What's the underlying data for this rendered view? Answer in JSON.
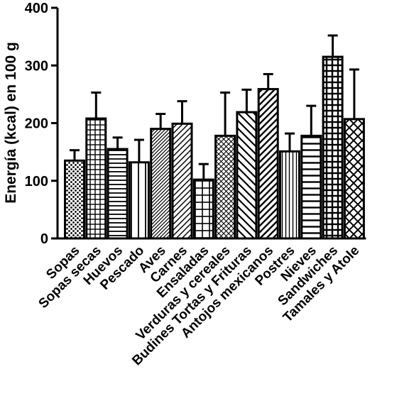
{
  "chart_data": {
    "type": "bar",
    "ylabel": "Energía (kcal) en 100 g",
    "xlabel": "",
    "ylim": [
      0,
      400
    ],
    "yticks": [
      0,
      100,
      200,
      300,
      400
    ],
    "error_bars": "upper",
    "categories": [
      "Sopas",
      "Sopas secas",
      "Huevos",
      "Pescado",
      "Aves",
      "Carnes",
      "Ensaladas",
      "Verduras y cereales",
      "Budines Tortas y Frituras",
      "Antojos mexicanos",
      "Postres",
      "Nieves",
      "Sandwiches",
      "Tamales y Atole"
    ],
    "values": [
      135,
      208,
      155,
      132,
      190,
      199,
      102,
      178,
      219,
      259,
      151,
      178,
      315,
      207
    ],
    "errors": [
      18,
      45,
      20,
      39,
      26,
      39,
      27,
      75,
      39,
      26,
      31,
      52,
      37,
      86
    ],
    "patterns": [
      "dots",
      "grid-small",
      "horizontal",
      "vertical",
      "diagonal-right-dense",
      "diagonal-right",
      "grid",
      "crosshatch-diagonal",
      "diagonal-left",
      "diagonal-right-wide",
      "vertical-dense",
      "horizontal-wide",
      "grid-bold",
      "crosshatch-wide"
    ],
    "colors": {
      "bar_stroke": "#000000",
      "bar_fill": "#ffffff"
    }
  }
}
